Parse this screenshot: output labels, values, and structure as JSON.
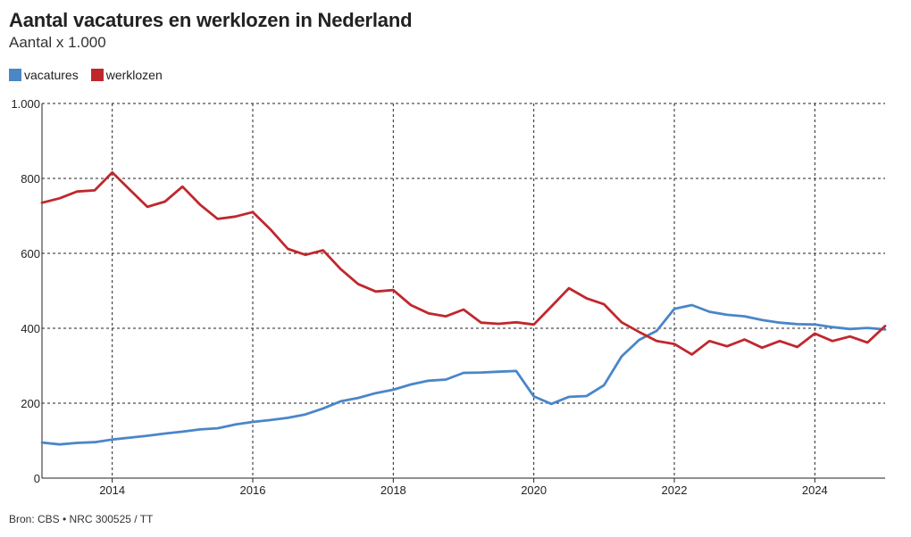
{
  "header": {
    "title": "Aantal vacatures en werklozen in Nederland",
    "subtitle": "Aantal x 1.000"
  },
  "source": "Bron: CBS • NRC 300525 / TT",
  "chart_data": {
    "type": "line",
    "title": "Aantal vacatures en werklozen in Nederland",
    "subtitle": "Aantal x 1.000",
    "xlabel": "",
    "ylabel": "",
    "xlim": [
      2013.0,
      2025.0
    ],
    "ylim": [
      0,
      1000
    ],
    "y_ticks": [
      0,
      200,
      400,
      600,
      800,
      1000
    ],
    "y_tick_labels": [
      "0",
      "200",
      "400",
      "600",
      "800",
      "1.000"
    ],
    "x_ticks": [
      2014,
      2016,
      2018,
      2020,
      2022,
      2024
    ],
    "x_tick_labels": [
      "2014",
      "2016",
      "2018",
      "2020",
      "2022",
      "2024"
    ],
    "grid": "dashed",
    "legend_position": "top-left",
    "series": [
      {
        "name": "vacatures",
        "color": "#4a86c8",
        "x": [
          2013.0,
          2013.25,
          2013.5,
          2013.75,
          2014.0,
          2014.25,
          2014.5,
          2014.75,
          2015.0,
          2015.25,
          2015.5,
          2015.75,
          2016.0,
          2016.25,
          2016.5,
          2016.75,
          2017.0,
          2017.25,
          2017.5,
          2017.75,
          2018.0,
          2018.25,
          2018.5,
          2018.75,
          2019.0,
          2019.25,
          2019.5,
          2019.75,
          2020.0,
          2020.25,
          2020.5,
          2020.75,
          2021.0,
          2021.25,
          2021.5,
          2021.75,
          2022.0,
          2022.25,
          2022.5,
          2022.75,
          2023.0,
          2023.25,
          2023.5,
          2023.75,
          2024.0,
          2024.25,
          2024.5,
          2024.75,
          2025.0
        ],
        "values": [
          95,
          90,
          94,
          96,
          103,
          108,
          113,
          119,
          124,
          130,
          133,
          143,
          150,
          155,
          161,
          170,
          186,
          205,
          214,
          227,
          236,
          250,
          260,
          263,
          281,
          282,
          284,
          286,
          218,
          198,
          217,
          219,
          248,
          325,
          369,
          393,
          452,
          462,
          444,
          436,
          432,
          422,
          415,
          411,
          410,
          403,
          398,
          401,
          397
        ]
      },
      {
        "name": "werklozen",
        "color": "#c0272d",
        "x": [
          2013.0,
          2013.25,
          2013.5,
          2013.75,
          2014.0,
          2014.25,
          2014.5,
          2014.75,
          2015.0,
          2015.25,
          2015.5,
          2015.75,
          2016.0,
          2016.25,
          2016.5,
          2016.75,
          2017.0,
          2017.25,
          2017.5,
          2017.75,
          2018.0,
          2018.25,
          2018.5,
          2018.75,
          2019.0,
          2019.25,
          2019.5,
          2019.75,
          2020.0,
          2020.25,
          2020.5,
          2020.75,
          2021.0,
          2021.25,
          2021.5,
          2021.75,
          2022.0,
          2022.25,
          2022.5,
          2022.75,
          2023.0,
          2023.25,
          2023.5,
          2023.75,
          2024.0,
          2024.25,
          2024.5,
          2024.75,
          2025.0
        ],
        "values": [
          735,
          747,
          765,
          768,
          816,
          770,
          724,
          738,
          778,
          730,
          692,
          698,
          710,
          664,
          612,
          596,
          608,
          558,
          518,
          498,
          502,
          462,
          440,
          432,
          450,
          415,
          412,
          416,
          410,
          458,
          507,
          480,
          464,
          416,
          390,
          366,
          358,
          330,
          366,
          352,
          370,
          348,
          366,
          350,
          386,
          366,
          378,
          362,
          406
        ]
      }
    ]
  }
}
